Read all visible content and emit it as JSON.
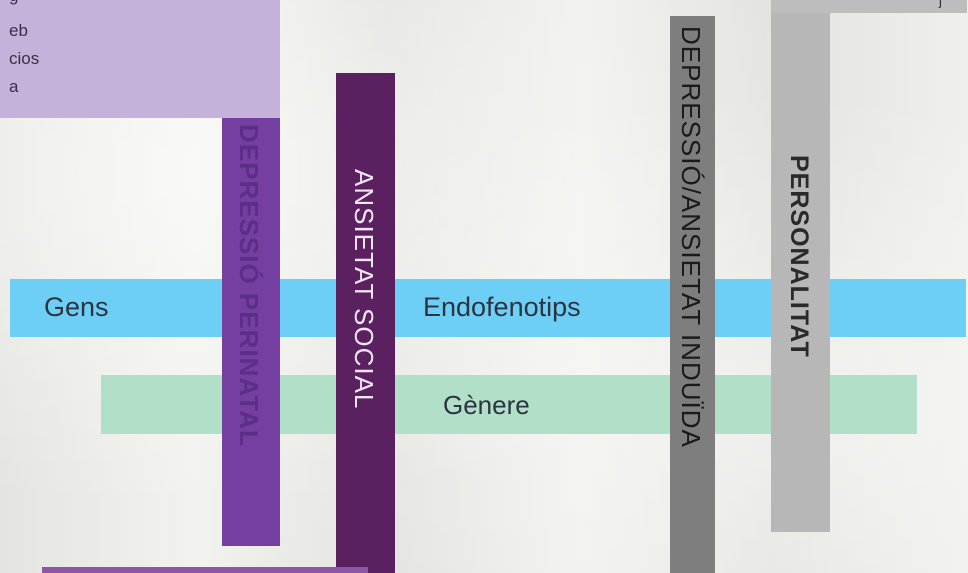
{
  "top_box": {
    "lines": [
      "g",
      "eb",
      "cios",
      "a"
    ]
  },
  "bars": {
    "gens": "Gens",
    "endofenotips": "Endofenotips",
    "genere": "Gènere"
  },
  "vertical_bars": {
    "perinatal": "DEPRESSIÓ PERINATAL",
    "social": "ANSIETAT SOCIAL",
    "induida": "DEPRESSIÓ/ANSIETAT INDUÏDA",
    "personalitat": "PERSONALITAT"
  },
  "top_right_glyph": "j",
  "colors": {
    "light_purple": "#c5b2db",
    "blue": "#6ecff6",
    "green": "#b2dfc8",
    "purple": "#743fa1",
    "dark_purple": "#5b2060",
    "gray": "#7e7e7e",
    "light_gray": "#b7b7b7"
  }
}
